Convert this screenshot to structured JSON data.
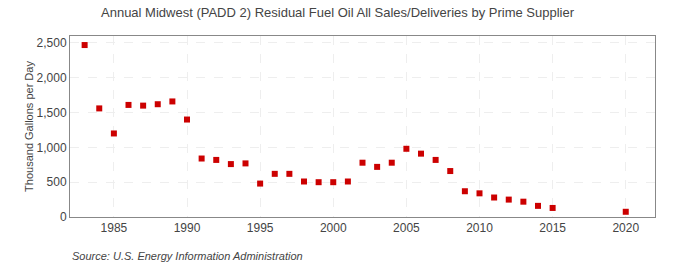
{
  "chart_data": {
    "type": "scatter",
    "title": "Annual Midwest (PADD 2) Residual Fuel Oil All Sales/Deliveries by Prime Supplier",
    "ylabel": "Thousand Gallons per Day",
    "annotations": [
      "Source: U.S. Energy Information Administration"
    ],
    "x": [
      1983,
      1984,
      1985,
      1986,
      1987,
      1988,
      1989,
      1990,
      1991,
      1992,
      1993,
      1994,
      1995,
      1996,
      1997,
      1998,
      1999,
      2000,
      2001,
      2002,
      2003,
      2004,
      2005,
      2006,
      2007,
      2008,
      2009,
      2010,
      2011,
      2012,
      2013,
      2014,
      2015,
      2020
    ],
    "values": [
      2470,
      1560,
      1200,
      1610,
      1600,
      1620,
      1660,
      1400,
      840,
      820,
      760,
      770,
      480,
      620,
      620,
      510,
      500,
      500,
      510,
      780,
      720,
      780,
      980,
      910,
      820,
      660,
      370,
      340,
      280,
      250,
      220,
      160,
      130,
      75
    ],
    "color": "#cc0000",
    "marker": "square",
    "xlim": [
      1982,
      2022
    ],
    "xticks": [
      1985,
      1990,
      1995,
      2000,
      2005,
      2010,
      2015,
      2020
    ],
    "ylim": [
      0,
      2600
    ],
    "yticks": [
      0,
      500,
      {
        "value": 1000,
        "label": "1,000"
      },
      {
        "value": 1500,
        "label": "1,500"
      },
      {
        "value": 2000,
        "label": "2,000"
      },
      {
        "value": 2500,
        "label": "2,500"
      }
    ],
    "grid": true
  }
}
